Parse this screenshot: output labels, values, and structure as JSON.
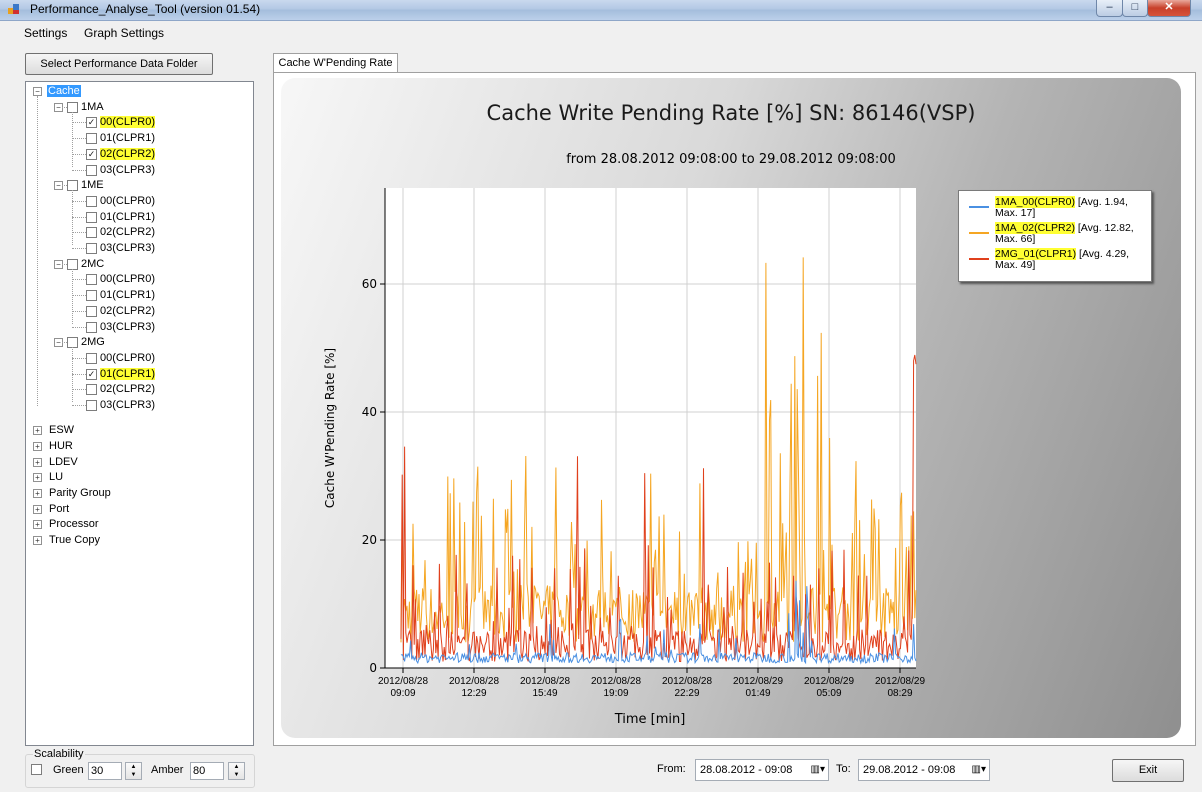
{
  "window": {
    "title": "Performance_Analyse_Tool (version 01.54)",
    "min": "–",
    "max": "□",
    "close": "✕"
  },
  "menu": {
    "items": [
      "Settings",
      "Graph Settings"
    ]
  },
  "left": {
    "folder_button": "Select  Performance Data Folder",
    "tree": {
      "root": "Cache",
      "groups": [
        {
          "label": "1MA",
          "items": [
            {
              "label": "00(CLPR0)",
              "checked": true
            },
            {
              "label": "01(CLPR1)",
              "checked": false
            },
            {
              "label": "02(CLPR2)",
              "checked": true
            },
            {
              "label": "03(CLPR3)",
              "checked": false
            }
          ]
        },
        {
          "label": "1ME",
          "items": [
            {
              "label": "00(CLPR0)",
              "checked": false
            },
            {
              "label": "01(CLPR1)",
              "checked": false
            },
            {
              "label": "02(CLPR2)",
              "checked": false
            },
            {
              "label": "03(CLPR3)",
              "checked": false
            }
          ]
        },
        {
          "label": "2MC",
          "items": [
            {
              "label": "00(CLPR0)",
              "checked": false
            },
            {
              "label": "01(CLPR1)",
              "checked": false
            },
            {
              "label": "02(CLPR2)",
              "checked": false
            },
            {
              "label": "03(CLPR3)",
              "checked": false
            }
          ]
        },
        {
          "label": "2MG",
          "items": [
            {
              "label": "00(CLPR0)",
              "checked": false
            },
            {
              "label": "01(CLPR1)",
              "checked": true
            },
            {
              "label": "02(CLPR2)",
              "checked": false
            },
            {
              "label": "03(CLPR3)",
              "checked": false
            }
          ]
        }
      ],
      "others": [
        "ESW",
        "HUR",
        "LDEV",
        "LU",
        "Parity Group",
        "Port",
        "Processor",
        "True Copy"
      ]
    },
    "scalability": {
      "label": "Scalability",
      "green_label": "Green",
      "green_value": "30",
      "amber_label": "Amber",
      "amber_value": "80"
    }
  },
  "tab": {
    "label": "Cache W'Pending Rate"
  },
  "bottom": {
    "from_label": "From:",
    "from_value": "28.08.2012 - 09:08",
    "to_label": "To:",
    "to_value": "29.08.2012 - 09:08",
    "exit_label": "Exit"
  },
  "chart_data": {
    "type": "line",
    "title": "Cache Write Pending Rate [%] SN: 86146(VSP)",
    "subtitle": "from 28.08.2012 09:08:00 to 29.08.2012 09:08:00",
    "xlabel": "Time [min]",
    "ylabel": "Cache W'Pending Rate [%]",
    "ylim": [
      0,
      75
    ],
    "yticks": [
      0,
      20,
      40,
      60
    ],
    "xticks": [
      {
        "line1": "2012/08/28",
        "line2": "09:09"
      },
      {
        "line1": "2012/08/28",
        "line2": "12:29"
      },
      {
        "line1": "2012/08/28",
        "line2": "15:49"
      },
      {
        "line1": "2012/08/28",
        "line2": "19:09"
      },
      {
        "line1": "2012/08/28",
        "line2": "22:29"
      },
      {
        "line1": "2012/08/29",
        "line2": "01:49"
      },
      {
        "line1": "2012/08/29",
        "line2": "05:09"
      },
      {
        "line1": "2012/08/29",
        "line2": "08:29"
      }
    ],
    "grid": true,
    "legend_position": "top-right",
    "series": [
      {
        "name": "1MA_00(CLPR0)",
        "stats": "[Avg. 1.94, Max. 17]",
        "color": "#4a90e2",
        "avg": 1.94,
        "max": 17
      },
      {
        "name": "1MA_02(CLPR2)",
        "stats": "[Avg. 12.82, Max. 66]",
        "color": "#f5a623",
        "avg": 12.82,
        "max": 66
      },
      {
        "name": "2MG_01(CLPR1)",
        "stats": "[Avg. 4.29, Max. 49]",
        "color": "#e0401c",
        "avg": 4.29,
        "max": 49
      }
    ]
  }
}
